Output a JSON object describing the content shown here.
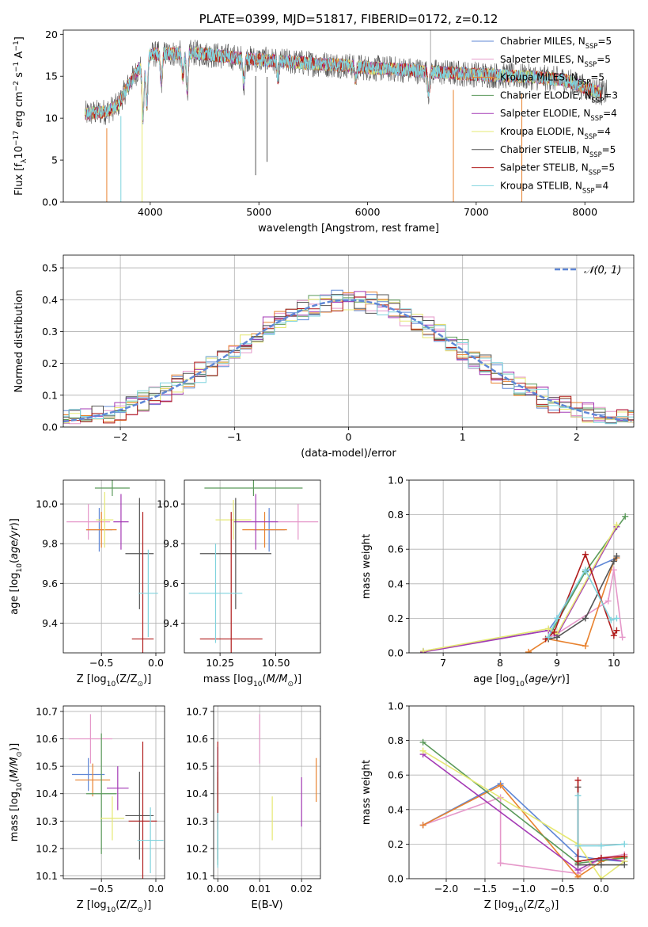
{
  "colors": [
    "#5f87d6",
    "#e597c9",
    "#e8822f",
    "#5b9a5b",
    "#a43ab5",
    "#e6e873",
    "#555555",
    "#b01c1c",
    "#7fd3dd"
  ],
  "series_names": [
    "Chabrier MILES, N_{SSP}=5",
    "Salpeter MILES, N_{SSP}=5",
    "Kroupa MILES, N_{SSP}=5",
    "Chabrier ELODIE, N_{SSP}=3",
    "Salpeter ELODIE, N_{SSP}=4",
    "Kroupa ELODIE, N_{SSP}=4",
    "Chabrier STELIB, N_{SSP}=5",
    "Salpeter STELIB, N_{SSP}=5",
    "Kroupa STELIB, N_{SSP}=4"
  ],
  "legend_labels": [
    {
      "pre": "Chabrier MILES, N",
      "sub": "SSP",
      "post": "=5"
    },
    {
      "pre": "Salpeter MILES, N",
      "sub": "SSP",
      "post": "=5"
    },
    {
      "pre": "Kroupa MILES, N",
      "sub": "SSP",
      "post": "=5"
    },
    {
      "pre": "Chabrier ELODIE, N",
      "sub": "SSP",
      "post": "=3"
    },
    {
      "pre": "Salpeter ELODIE, N",
      "sub": "SSP",
      "post": "=4"
    },
    {
      "pre": "Kroupa ELODIE, N",
      "sub": "SSP",
      "post": "=4"
    },
    {
      "pre": "Chabrier STELIB, N",
      "sub": "SSP",
      "post": "=5"
    },
    {
      "pre": "Salpeter STELIB, N",
      "sub": "SSP",
      "post": "=5"
    },
    {
      "pre": "Kroupa STELIB, N",
      "sub": "SSP",
      "post": "=4"
    }
  ],
  "chart_data": [
    {
      "id": "spectrum",
      "type": "line",
      "title": "PLATE=0399, MJD=51817, FIBERID=0172, z=0.12",
      "xlabel": "wavelength [Angstrom, rest frame]",
      "ylabel": {
        "pre": "Flux [f",
        "sub": "λ",
        "mid": "10",
        "sup1": "−17",
        "mid2": " erg cm",
        "sup2": "−2",
        "mid3": " s",
        "sup3": "−1",
        "mid4": " A",
        "sup4": "−1",
        "post": "]"
      },
      "xlim": [
        3200,
        8450
      ],
      "ylim": [
        0,
        20.5
      ],
      "xticks": [
        4000,
        5000,
        6000,
        7000,
        8000
      ],
      "yticks": [
        0,
        5,
        10,
        15,
        20
      ],
      "continuum_x": [
        3400,
        3600,
        3700,
        3800,
        3900,
        4000,
        4200,
        4400,
        4600,
        4800,
        5000,
        5200,
        5500,
        5800,
        6000,
        6300,
        6600,
        6900,
        7200,
        7500,
        7800,
        8100,
        8200
      ],
      "continuum_y": [
        10.5,
        10.8,
        11.5,
        14.0,
        16.0,
        17.6,
        17.7,
        17.8,
        17.5,
        17.2,
        17.0,
        16.8,
        16.5,
        16.3,
        16.0,
        15.8,
        15.5,
        15.3,
        15.1,
        14.9,
        14.6,
        13.2,
        13.0
      ],
      "absorption_lines": [
        [
          3934,
          6.5
        ],
        [
          3969,
          5.5
        ],
        [
          4102,
          3.5
        ],
        [
          4300,
          3.0
        ],
        [
          4341,
          4.5
        ],
        [
          4861,
          3.0
        ],
        [
          5175,
          2.0
        ],
        [
          5890,
          1.5
        ],
        [
          6563,
          2.5
        ]
      ],
      "spikes": [
        [
          3600,
          0,
          "#e8822f"
        ],
        [
          3730,
          0,
          "#7fd3dd"
        ],
        [
          3925,
          0,
          "#e6e873"
        ],
        [
          4970,
          3.2,
          "#555555"
        ],
        [
          5075,
          4.8,
          "#555555"
        ],
        [
          6790,
          0,
          "#e8822f"
        ],
        [
          7420,
          0,
          "#e8822f"
        ],
        [
          6580,
          20.5,
          "#aaaaaa"
        ]
      ],
      "legend_position": "top-right"
    },
    {
      "id": "residuals",
      "type": "histogram",
      "xlabel": "(data-model)/error",
      "ylabel": "Normed distribution",
      "xlim": [
        -2.5,
        2.5
      ],
      "ylim": [
        0,
        0.54
      ],
      "xticks": [
        -2,
        -1,
        0,
        1,
        2
      ],
      "yticks": [
        0.0,
        0.1,
        0.2,
        0.3,
        0.4,
        0.5
      ],
      "bin_width": 0.1,
      "normal_curve_label": "𝒩(0, 1)",
      "normal_curve_color": "#5f87d6",
      "legend_position": "top-right"
    },
    {
      "id": "age-vs-z",
      "type": "scatter",
      "xlabel": {
        "pre": "Z [log",
        "sub": "10",
        "mid": "(Z/Z",
        "sub2": "⊙",
        "post": ")]"
      },
      "ylabel": {
        "pre": "age  [log",
        "sub": "10",
        "mid": "(",
        "ital": "age/yr",
        "post": ")]"
      },
      "xlim": [
        -0.85,
        0.08
      ],
      "ylim": [
        9.25,
        10.12
      ],
      "xticks": [
        -0.5,
        0.0
      ],
      "xtick_labels": [
        "−0.5",
        "0.0"
      ],
      "yticks": [
        9.4,
        9.6,
        9.8,
        10.0
      ],
      "points": [
        {
          "x": -0.52,
          "y": 9.87,
          "xerr": 0.12,
          "yerr": 0.11
        },
        {
          "x": -0.62,
          "y": 9.91,
          "xerr": 0.2,
          "yerr": 0.09
        },
        {
          "x": -0.5,
          "y": 9.87,
          "xerr": 0.14,
          "yerr": 0.09
        },
        {
          "x": -0.4,
          "y": 10.08,
          "xerr": 0.16,
          "yerr": 0.04
        },
        {
          "x": -0.32,
          "y": 9.91,
          "xerr": 0.07,
          "yerr": 0.14
        },
        {
          "x": -0.47,
          "y": 9.92,
          "xerr": 0.08,
          "yerr": 0.14
        },
        {
          "x": -0.15,
          "y": 9.75,
          "xerr": 0.13,
          "yerr": 0.28
        },
        {
          "x": -0.12,
          "y": 9.32,
          "xerr": 0.1,
          "yerr": 0.64
        },
        {
          "x": -0.07,
          "y": 9.55,
          "xerr": 0.09,
          "yerr": 0.22
        }
      ]
    },
    {
      "id": "age-vs-mass",
      "type": "scatter",
      "xlabel": {
        "pre": "mass [log",
        "sub": "10",
        "mid": "(",
        "ital": "M/M",
        "sub2": "⊙",
        "post": ")]"
      },
      "ylabel": "",
      "xlim": [
        10.09,
        10.7
      ],
      "ylim": [
        9.25,
        10.12
      ],
      "xticks": [
        10.25,
        10.5
      ],
      "xtick_labels": [
        "10.25",
        "10.50"
      ],
      "yticks": [
        9.4,
        9.6,
        9.8,
        10.0
      ],
      "points": [
        {
          "x": 10.47,
          "y": 9.87,
          "xerr": 0.07,
          "yerr": 0.11
        },
        {
          "x": 10.6,
          "y": 9.91,
          "xerr": 0.09,
          "yerr": 0.09
        },
        {
          "x": 10.45,
          "y": 9.87,
          "xerr": 0.1,
          "yerr": 0.09
        },
        {
          "x": 10.4,
          "y": 10.08,
          "xerr": 0.22,
          "yerr": 0.04
        },
        {
          "x": 10.41,
          "y": 9.91,
          "xerr": 0.1,
          "yerr": 0.14
        },
        {
          "x": 10.31,
          "y": 9.92,
          "xerr": 0.08,
          "yerr": 0.1
        },
        {
          "x": 10.32,
          "y": 9.75,
          "xerr": 0.16,
          "yerr": 0.28
        },
        {
          "x": 10.3,
          "y": 9.32,
          "xerr": 0.14,
          "yerr": 0.64
        },
        {
          "x": 10.23,
          "y": 9.55,
          "xerr": 0.12,
          "yerr": 0.25
        }
      ]
    },
    {
      "id": "massweight-vs-age",
      "type": "line",
      "xlabel": {
        "pre": "age  [log",
        "sub": "10",
        "mid": "(",
        "ital": "age/yr",
        "post": ")]"
      },
      "ylabel": "mass weight",
      "xlim": [
        6.4,
        10.35
      ],
      "ylim": [
        0,
        1.0
      ],
      "xticks": [
        7,
        8,
        9,
        10
      ],
      "yticks": [
        0.0,
        0.2,
        0.4,
        0.6,
        0.8,
        1.0
      ],
      "series": [
        {
          "x": [
            6.65,
            8.85,
            9.0,
            9.5,
            10.05
          ],
          "y": [
            0.01,
            0.13,
            0.2,
            0.47,
            0.55
          ]
        },
        {
          "x": [
            8.85,
            8.95,
            9.9,
            10.0,
            10.15
          ],
          "y": [
            0.09,
            0.1,
            0.3,
            0.48,
            0.09
          ]
        },
        {
          "x": [
            8.5,
            8.85,
            9.5,
            10.0,
            10.05
          ],
          "y": [
            0.005,
            0.08,
            0.04,
            0.53,
            0.55
          ]
        },
        {
          "x": [
            8.85,
            9.5,
            10.2
          ],
          "y": [
            0.09,
            0.47,
            0.79
          ]
        },
        {
          "x": [
            6.65,
            8.85,
            9.0,
            10.05
          ],
          "y": [
            0.005,
            0.13,
            0.1,
            0.73
          ]
        },
        {
          "x": [
            6.65,
            8.85,
            9.0,
            10.05
          ],
          "y": [
            0.01,
            0.14,
            0.11,
            0.74
          ]
        },
        {
          "x": [
            8.85,
            9.0,
            9.5,
            10.0,
            10.05
          ],
          "y": [
            0.08,
            0.09,
            0.2,
            0.53,
            0.56
          ]
        },
        {
          "x": [
            8.8,
            8.95,
            9.5,
            10.0,
            10.05
          ],
          "y": [
            0.08,
            0.12,
            0.57,
            0.1,
            0.13
          ]
        },
        {
          "x": [
            8.85,
            9.0,
            9.5,
            9.95,
            10.05
          ],
          "y": [
            0.09,
            0.2,
            0.48,
            0.19,
            0.2
          ]
        }
      ]
    },
    {
      "id": "mass-vs-z",
      "type": "scatter",
      "xlabel": {
        "pre": "Z [log",
        "sub": "10",
        "mid": "(Z/Z",
        "sub2": "⊙",
        "post": ")]"
      },
      "ylabel": {
        "pre": "mass [log",
        "sub": "10",
        "mid": "(",
        "ital": "M/M",
        "sub2": "⊙",
        "post": ")]"
      },
      "xlim": [
        -0.85,
        0.08
      ],
      "ylim": [
        10.09,
        10.72
      ],
      "xticks": [
        -0.5,
        0.0
      ],
      "xtick_labels": [
        "−0.5",
        "0.0"
      ],
      "yticks": [
        10.1,
        10.2,
        10.3,
        10.4,
        10.5,
        10.6,
        10.7
      ],
      "points": [
        {
          "x": -0.62,
          "y": 10.47,
          "xerr": 0.15,
          "yerr": 0.06
        },
        {
          "x": -0.6,
          "y": 10.6,
          "xerr": 0.2,
          "yerr": 0.09
        },
        {
          "x": -0.58,
          "y": 10.45,
          "xerr": 0.16,
          "yerr": 0.06
        },
        {
          "x": -0.5,
          "y": 10.4,
          "xerr": 0.14,
          "yerr": 0.22
        },
        {
          "x": -0.35,
          "y": 10.42,
          "xerr": 0.1,
          "yerr": 0.08
        },
        {
          "x": -0.4,
          "y": 10.31,
          "xerr": 0.11,
          "yerr": 0.08
        },
        {
          "x": -0.15,
          "y": 10.32,
          "xerr": 0.13,
          "yerr": 0.16
        },
        {
          "x": -0.12,
          "y": 10.3,
          "xerr": 0.13,
          "yerr": 0.29
        },
        {
          "x": -0.05,
          "y": 10.23,
          "xerr": 0.12,
          "yerr": 0.12
        }
      ]
    },
    {
      "id": "mass-vs-ebv",
      "type": "scatter",
      "xlabel": "E(B-V)",
      "ylabel": "",
      "xlim": [
        -0.001,
        0.0245
      ],
      "ylim": [
        10.09,
        10.72
      ],
      "xticks": [
        0.0,
        0.01,
        0.02
      ],
      "xtick_labels": [
        "0.00",
        "0.01",
        "0.02"
      ],
      "yticks": [
        10.1,
        10.2,
        10.3,
        10.4,
        10.5,
        10.6,
        10.7
      ],
      "points": [
        {
          "x": 0.0,
          "y": 10.47,
          "xerr": 0,
          "yerr": 0.1
        },
        {
          "x": 0.01,
          "y": 10.6,
          "xerr": 0,
          "yerr": 0.09
        },
        {
          "x": 0.0235,
          "y": 10.45,
          "xerr": 0,
          "yerr": 0.08
        },
        {
          "x": 0.0,
          "y": 10.3,
          "xerr": 0,
          "yerr": 0.16
        },
        {
          "x": 0.02,
          "y": 10.37,
          "xerr": 0,
          "yerr": 0.09
        },
        {
          "x": 0.013,
          "y": 10.31,
          "xerr": 0,
          "yerr": 0.08
        },
        {
          "x": 0.0,
          "y": 10.32,
          "xerr": 0,
          "yerr": 0.16
        },
        {
          "x": 0.0,
          "y": 10.43,
          "xerr": 0,
          "yerr": 0.16
        },
        {
          "x": 0.0,
          "y": 10.23,
          "xerr": 0,
          "yerr": 0.1
        }
      ]
    },
    {
      "id": "massweight-vs-z",
      "type": "line",
      "xlabel": {
        "pre": "Z [log",
        "sub": "10",
        "mid": "(Z/Z",
        "sub2": "⊙",
        "post": ")]"
      },
      "ylabel": "mass weight",
      "xlim": [
        -2.48,
        0.42
      ],
      "ylim": [
        0,
        1.0
      ],
      "xticks": [
        -2.0,
        -1.5,
        -1.0,
        -0.5,
        0.0
      ],
      "xtick_labels": [
        "−2.0",
        "−1.5",
        "−1.0",
        "−0.5",
        "0.0"
      ],
      "yticks": [
        0.0,
        0.2,
        0.4,
        0.6,
        0.8,
        1.0
      ],
      "series": [
        {
          "x": [
            -2.3,
            -1.3,
            -0.3,
            0.0,
            0.3
          ],
          "y": [
            0.31,
            0.55,
            0.13,
            0.11,
            0.1
          ]
        },
        {
          "x": [
            -2.3,
            -1.3,
            -1.3,
            -0.3,
            0.0,
            0.3
          ],
          "y": [
            0.31,
            0.47,
            0.09,
            0.03,
            0.12,
            0.14
          ]
        },
        {
          "x": [
            -2.3,
            -1.3,
            -0.3,
            0.0,
            0.3
          ],
          "y": [
            0.31,
            0.54,
            0.01,
            0.1,
            0.13
          ]
        },
        {
          "x": [
            -2.3,
            -0.3,
            0.3
          ],
          "y": [
            0.79,
            0.09,
            0.12
          ]
        },
        {
          "x": [
            -2.3,
            -0.3,
            0.0,
            0.3
          ],
          "y": [
            0.72,
            0.05,
            0.12,
            0.1
          ]
        },
        {
          "x": [
            -2.3,
            -0.3,
            0.0,
            0.3
          ],
          "y": [
            0.74,
            0.2,
            0.0,
            0.1
          ]
        },
        {
          "x": [
            -0.3,
            -0.3,
            0.0,
            0.3
          ],
          "y": [
            0.53,
            0.08,
            0.08,
            0.08
          ]
        },
        {
          "x": [
            -0.3,
            -0.3,
            0.0,
            0.3
          ],
          "y": [
            0.57,
            0.1,
            0.12,
            0.13
          ]
        },
        {
          "x": [
            -0.3,
            -0.3,
            0.0,
            0.3
          ],
          "y": [
            0.48,
            0.19,
            0.19,
            0.2
          ]
        }
      ]
    }
  ]
}
